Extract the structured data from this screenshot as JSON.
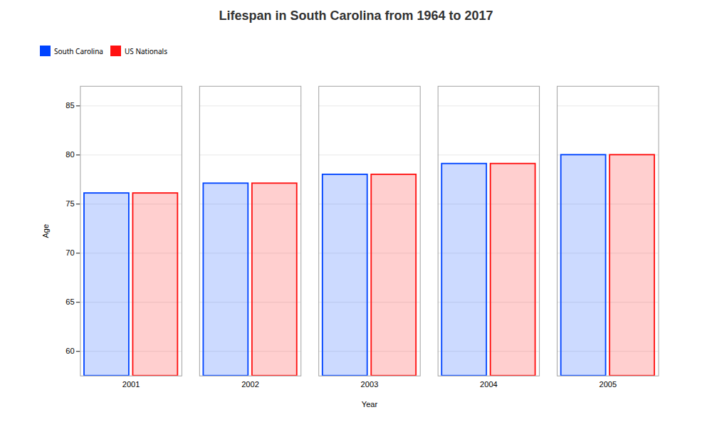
{
  "chart_data": {
    "type": "bar",
    "title": "Lifespan in South Carolina from 1964 to 2017",
    "xlabel": "Year",
    "ylabel": "Age",
    "categories": [
      "2001",
      "2002",
      "2003",
      "2004",
      "2005"
    ],
    "series": [
      {
        "name": "South Carolina",
        "color": "#0044ff",
        "values": [
          76.1,
          77.1,
          78.0,
          79.1,
          80.0
        ]
      },
      {
        "name": "US Nationals",
        "color": "#ff1111",
        "values": [
          76.1,
          77.1,
          78.0,
          79.1,
          80.0
        ]
      }
    ],
    "ylim": [
      57.5,
      87
    ],
    "yticks": [
      60,
      65,
      70,
      75,
      80,
      85
    ],
    "grid": true,
    "legend": "top"
  }
}
